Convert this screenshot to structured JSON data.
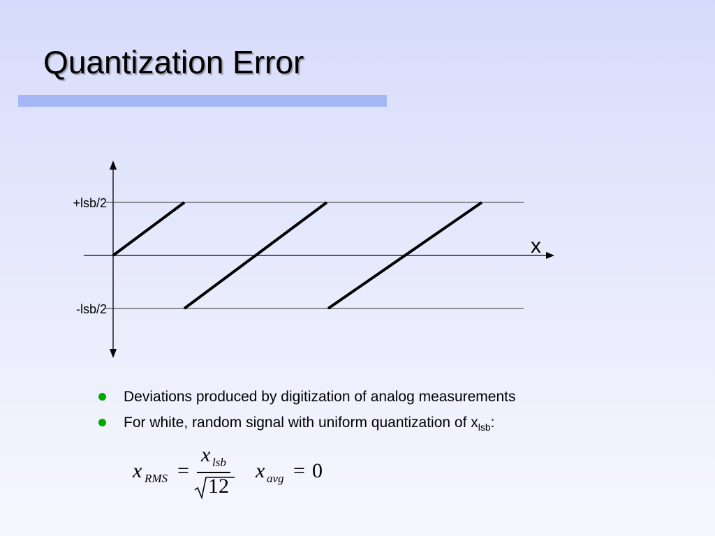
{
  "title": "Quantization Error",
  "colors": {
    "underline": "#a5b8f5",
    "bullet": "#00a800",
    "axis": "#000000",
    "guide": "#555555"
  },
  "diagram": {
    "y_top_label": "+lsb/2",
    "y_bottom_label": "-lsb/2",
    "x_axis_label": "x"
  },
  "bullets": [
    {
      "text": "Deviations produced by digitization of analog measurements"
    },
    {
      "text": "For white, random signal with uniform quantization of x",
      "sub": "lsb",
      "suffix": ":"
    }
  ],
  "formula": {
    "rms_var": "x",
    "rms_sub": "RMS",
    "equals": "=",
    "numerator_var": "x",
    "numerator_sub": "lsb",
    "denominator": "12",
    "avg_var": "x",
    "avg_sub": "avg",
    "avg_value": "0"
  }
}
